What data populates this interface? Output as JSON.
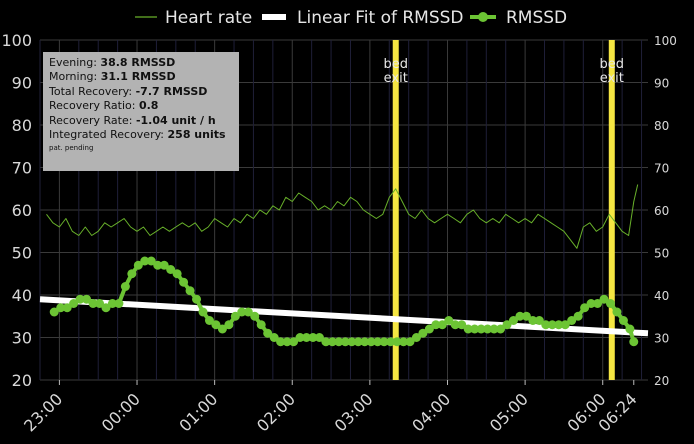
{
  "chart_data": {
    "type": "line",
    "title": "",
    "xlabel": "",
    "ylabel": "",
    "ylim": [
      20,
      100
    ],
    "y_ticks": [
      "20",
      "30",
      "40",
      "50",
      "60",
      "70",
      "80",
      "90",
      "100"
    ],
    "x_ticks": [
      {
        "label": "23:00",
        "t": "23:00"
      },
      {
        "label": "00:00",
        "t": "00:00"
      },
      {
        "label": "01:00",
        "t": "01:00"
      },
      {
        "label": "02:00",
        "t": "02:00"
      },
      {
        "label": "03:00",
        "t": "03:00"
      },
      {
        "label": "04:00",
        "t": "04:00"
      },
      {
        "label": "05:00",
        "t": "05:00"
      },
      {
        "label": "06:00",
        "t": "06:00"
      },
      {
        "label": "06:24",
        "t": "06:24"
      }
    ],
    "xlim": [
      "22:45",
      "06:35"
    ],
    "grid": true,
    "legend": {
      "placement": "top",
      "entries": [
        {
          "name": "Heart rate",
          "style": "thin-line"
        },
        {
          "name": "Linear Fit of RMSSD",
          "style": "thick-line"
        },
        {
          "name": "RMSSD",
          "style": "line-with-dots"
        }
      ]
    },
    "series": [
      {
        "name": "RMSSD",
        "color": "#6cc434",
        "points": [
          [
            "22:56",
            36
          ],
          [
            "23:01",
            37
          ],
          [
            "23:06",
            37
          ],
          [
            "23:11",
            38
          ],
          [
            "23:16",
            39
          ],
          [
            "23:21",
            39
          ],
          [
            "23:26",
            38
          ],
          [
            "23:31",
            38
          ],
          [
            "23:36",
            37
          ],
          [
            "23:41",
            38
          ],
          [
            "23:46",
            38
          ],
          [
            "23:51",
            42
          ],
          [
            "23:56",
            45
          ],
          [
            "00:01",
            47
          ],
          [
            "00:06",
            48
          ],
          [
            "00:11",
            48
          ],
          [
            "00:16",
            47
          ],
          [
            "00:21",
            47
          ],
          [
            "00:26",
            46
          ],
          [
            "00:31",
            45
          ],
          [
            "00:36",
            43
          ],
          [
            "00:41",
            41
          ],
          [
            "00:46",
            39
          ],
          [
            "00:51",
            36
          ],
          [
            "00:56",
            34
          ],
          [
            "01:01",
            33
          ],
          [
            "01:06",
            32
          ],
          [
            "01:11",
            33
          ],
          [
            "01:16",
            35
          ],
          [
            "01:21",
            36
          ],
          [
            "01:26",
            36
          ],
          [
            "01:31",
            35
          ],
          [
            "01:36",
            33
          ],
          [
            "01:41",
            31
          ],
          [
            "01:46",
            30
          ],
          [
            "01:51",
            29
          ],
          [
            "01:56",
            29
          ],
          [
            "02:01",
            29
          ],
          [
            "02:06",
            30
          ],
          [
            "02:11",
            30
          ],
          [
            "02:16",
            30
          ],
          [
            "02:21",
            30
          ],
          [
            "02:26",
            29
          ],
          [
            "02:31",
            29
          ],
          [
            "02:36",
            29
          ],
          [
            "02:41",
            29
          ],
          [
            "02:46",
            29
          ],
          [
            "02:51",
            29
          ],
          [
            "02:56",
            29
          ],
          [
            "03:01",
            29
          ],
          [
            "03:06",
            29
          ],
          [
            "03:11",
            29
          ],
          [
            "03:16",
            29
          ],
          [
            "03:21",
            29
          ],
          [
            "03:26",
            29
          ],
          [
            "03:31",
            29
          ],
          [
            "03:36",
            30
          ],
          [
            "03:41",
            31
          ],
          [
            "03:46",
            32
          ],
          [
            "03:51",
            33
          ],
          [
            "03:56",
            33
          ],
          [
            "04:01",
            34
          ],
          [
            "04:06",
            33
          ],
          [
            "04:11",
            33
          ],
          [
            "04:16",
            32
          ],
          [
            "04:21",
            32
          ],
          [
            "04:26",
            32
          ],
          [
            "04:31",
            32
          ],
          [
            "04:36",
            32
          ],
          [
            "04:41",
            32
          ],
          [
            "04:46",
            33
          ],
          [
            "04:51",
            34
          ],
          [
            "04:56",
            35
          ],
          [
            "05:01",
            35
          ],
          [
            "05:06",
            34
          ],
          [
            "05:11",
            34
          ],
          [
            "05:16",
            33
          ],
          [
            "05:21",
            33
          ],
          [
            "05:26",
            33
          ],
          [
            "05:31",
            33
          ],
          [
            "05:36",
            34
          ],
          [
            "05:41",
            35
          ],
          [
            "05:46",
            37
          ],
          [
            "05:51",
            38
          ],
          [
            "05:56",
            38
          ],
          [
            "06:01",
            39
          ],
          [
            "06:06",
            38
          ],
          [
            "06:11",
            36
          ],
          [
            "06:16",
            34
          ],
          [
            "06:21",
            32
          ],
          [
            "06:24",
            29
          ]
        ]
      },
      {
        "name": "Linear Fit of RMSSD",
        "color": "#ffffff",
        "points": [
          [
            "22:45",
            39
          ],
          [
            "06:35",
            31
          ]
        ]
      },
      {
        "name": "Heart rate",
        "color": "#68b02a",
        "points": [
          [
            "22:50",
            59
          ],
          [
            "22:55",
            57
          ],
          [
            "23:00",
            56
          ],
          [
            "23:05",
            58
          ],
          [
            "23:10",
            55
          ],
          [
            "23:15",
            54
          ],
          [
            "23:20",
            56
          ],
          [
            "23:25",
            54
          ],
          [
            "23:30",
            55
          ],
          [
            "23:35",
            57
          ],
          [
            "23:40",
            56
          ],
          [
            "23:45",
            57
          ],
          [
            "23:50",
            58
          ],
          [
            "23:55",
            56
          ],
          [
            "00:00",
            55
          ],
          [
            "00:05",
            56
          ],
          [
            "00:10",
            54
          ],
          [
            "00:15",
            55
          ],
          [
            "00:20",
            56
          ],
          [
            "00:25",
            55
          ],
          [
            "00:30",
            56
          ],
          [
            "00:35",
            57
          ],
          [
            "00:40",
            56
          ],
          [
            "00:45",
            57
          ],
          [
            "00:50",
            55
          ],
          [
            "00:55",
            56
          ],
          [
            "01:00",
            58
          ],
          [
            "01:05",
            57
          ],
          [
            "01:10",
            56
          ],
          [
            "01:15",
            58
          ],
          [
            "01:20",
            57
          ],
          [
            "01:25",
            59
          ],
          [
            "01:30",
            58
          ],
          [
            "01:35",
            60
          ],
          [
            "01:40",
            59
          ],
          [
            "01:45",
            61
          ],
          [
            "01:50",
            60
          ],
          [
            "01:55",
            63
          ],
          [
            "02:00",
            62
          ],
          [
            "02:05",
            64
          ],
          [
            "02:10",
            63
          ],
          [
            "02:15",
            62
          ],
          [
            "02:20",
            60
          ],
          [
            "02:25",
            61
          ],
          [
            "02:30",
            60
          ],
          [
            "02:35",
            62
          ],
          [
            "02:40",
            61
          ],
          [
            "02:45",
            63
          ],
          [
            "02:50",
            62
          ],
          [
            "02:55",
            60
          ],
          [
            "03:00",
            59
          ],
          [
            "03:05",
            58
          ],
          [
            "03:10",
            59
          ],
          [
            "03:15",
            63
          ],
          [
            "03:20",
            65
          ],
          [
            "03:25",
            62
          ],
          [
            "03:30",
            59
          ],
          [
            "03:35",
            58
          ],
          [
            "03:40",
            60
          ],
          [
            "03:45",
            58
          ],
          [
            "03:50",
            57
          ],
          [
            "03:55",
            58
          ],
          [
            "04:00",
            59
          ],
          [
            "04:05",
            58
          ],
          [
            "04:10",
            57
          ],
          [
            "04:15",
            59
          ],
          [
            "04:20",
            60
          ],
          [
            "04:25",
            58
          ],
          [
            "04:30",
            57
          ],
          [
            "04:35",
            58
          ],
          [
            "04:40",
            57
          ],
          [
            "04:45",
            59
          ],
          [
            "04:50",
            58
          ],
          [
            "04:55",
            57
          ],
          [
            "05:00",
            58
          ],
          [
            "05:05",
            57
          ],
          [
            "05:10",
            59
          ],
          [
            "05:15",
            58
          ],
          [
            "05:20",
            57
          ],
          [
            "05:25",
            56
          ],
          [
            "05:30",
            55
          ],
          [
            "05:35",
            53
          ],
          [
            "05:40",
            51
          ],
          [
            "05:45",
            56
          ],
          [
            "05:50",
            57
          ],
          [
            "05:55",
            55
          ],
          [
            "06:00",
            56
          ],
          [
            "06:05",
            59
          ],
          [
            "06:10",
            57
          ],
          [
            "06:15",
            55
          ],
          [
            "06:20",
            54
          ],
          [
            "06:24",
            62
          ],
          [
            "06:27",
            66
          ]
        ]
      }
    ],
    "annotations": [
      {
        "label_line1": "bed",
        "label_line2": "exit",
        "t": "03:20",
        "color": "#f5e642"
      },
      {
        "label_line1": "bed",
        "label_line2": "exit",
        "t": "06:07",
        "color": "#f5e642"
      }
    ]
  },
  "info_box": {
    "rows": [
      {
        "label": "Evening: ",
        "value": "38.8 RMSSD"
      },
      {
        "label": "Morning: ",
        "value": "31.1 RMSSD"
      },
      {
        "label": "Total Recovery: ",
        "value": "-7.7 RMSSD"
      },
      {
        "label": "Recovery Ratio: ",
        "value": "0.8"
      },
      {
        "label": "Recovery Rate: ",
        "value": "-1.04 unit / h"
      },
      {
        "label": "Integrated Recovery: ",
        "value": "258 units"
      }
    ],
    "footnote": "pat. pending"
  }
}
